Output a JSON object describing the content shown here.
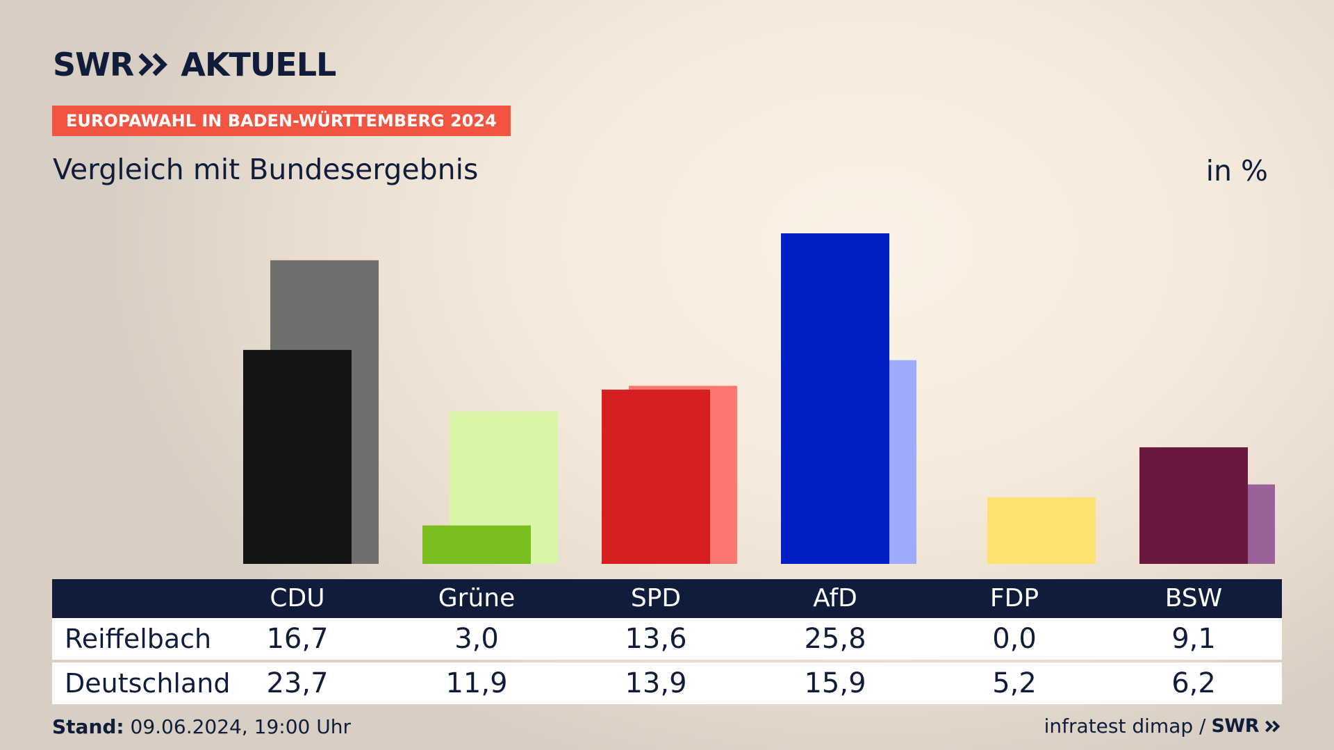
{
  "brand": {
    "name": "SWR",
    "section": "AKTUELL"
  },
  "kicker": "EUROPAWAHL IN BADEN-WÜRTTEMBERG 2024",
  "subtitle": "Vergleich mit Bundesergebnis",
  "unit": "in %",
  "chart_data": {
    "type": "bar",
    "categories": [
      "CDU",
      "Grüne",
      "SPD",
      "AfD",
      "FDP",
      "BSW"
    ],
    "series": [
      {
        "name": "Reiffelbach",
        "values": [
          16.7,
          3.0,
          13.6,
          25.8,
          0.0,
          9.1
        ],
        "labels": [
          "16,7",
          "3,0",
          "13,6",
          "25,8",
          "0,0",
          "9,1"
        ]
      },
      {
        "name": "Deutschland",
        "values": [
          23.7,
          11.9,
          13.9,
          15.9,
          5.2,
          6.2
        ],
        "labels": [
          "23,7",
          "11,9",
          "13,9",
          "15,9",
          "5,2",
          "6,2"
        ]
      }
    ],
    "colors": {
      "local": [
        "#141414",
        "#78be1e",
        "#d51f20",
        "#0020c6",
        "#fde26f",
        "#6a1840"
      ],
      "national": [
        "#716f6d",
        "#d8f5aa",
        "#ff7570",
        "#9faafd",
        "#fde26f",
        "#9a6299"
      ]
    },
    "ylim": [
      0,
      27
    ],
    "grid": false,
    "legend": "table below chart"
  },
  "footer": {
    "stand_label": "Stand:",
    "stand_value": "09.06.2024, 19:00 Uhr",
    "source": "infratest dimap /",
    "source_brand": "SWR"
  }
}
